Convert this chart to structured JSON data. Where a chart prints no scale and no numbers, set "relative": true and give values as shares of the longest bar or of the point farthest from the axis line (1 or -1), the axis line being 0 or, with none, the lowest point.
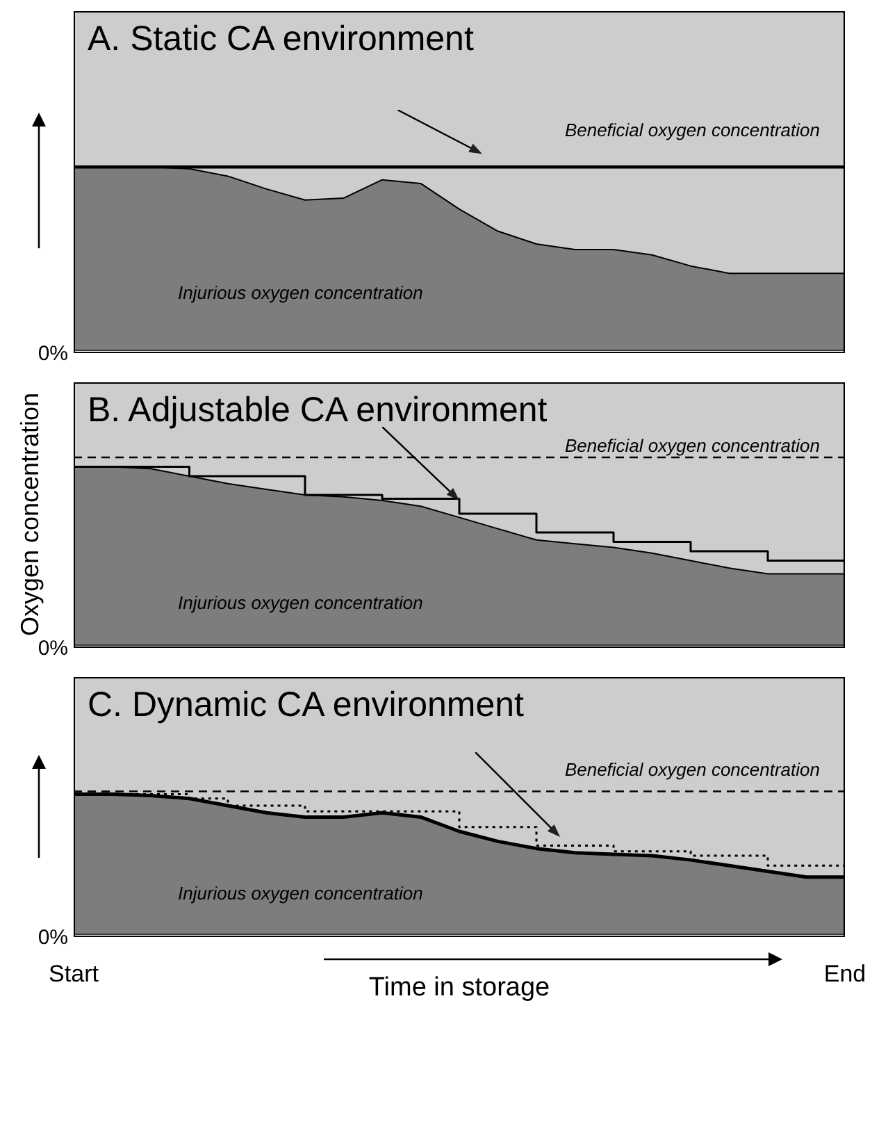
{
  "chart_data": [
    {
      "type": "area",
      "title": "A.  Static CA environment",
      "relative": true,
      "tick_labels": false,
      "categories": [
        null,
        null,
        null,
        null,
        null,
        null,
        null,
        null,
        null,
        null,
        null,
        null,
        null,
        null,
        null,
        null,
        null,
        null,
        null,
        null,
        null
      ],
      "annotations": [
        "Beneficial oxygen concentration",
        "Injurious oxygen concentration",
        "0%"
      ],
      "series": [
        {
          "color": "#7d7d7d",
          "values": [
            1,
            1,
            1,
            0.99,
            0.95,
            0.88,
            0.82,
            0.83,
            0.93,
            0.91,
            0.77,
            0.65,
            0.58,
            0.55,
            0.55,
            0.52,
            0.46,
            0.42,
            0.42,
            0.42,
            0.42
          ]
        },
        {
          "type": "line",
          "color": "#000000",
          "values": [
            1,
            1,
            1,
            1,
            1,
            1,
            1,
            1,
            1,
            1,
            1,
            1,
            1,
            1,
            1,
            1,
            1,
            1,
            1,
            1,
            1
          ]
        }
      ]
    },
    {
      "type": "area",
      "title": "B.  Adjustable CA environment",
      "ylabel": "Oxygen concentration",
      "relative": true,
      "tick_labels": false,
      "categories": [
        null,
        null,
        null,
        null,
        null,
        null,
        null,
        null,
        null,
        null,
        null,
        null,
        null,
        null,
        null,
        null,
        null,
        null,
        null,
        null,
        null
      ],
      "annotations": [
        "Beneficial oxygen concentration",
        "Injurious oxygen concentration",
        "0%"
      ],
      "series": [
        {
          "color": "#7d7d7d",
          "values": [
            0.95,
            0.95,
            0.94,
            0.9,
            0.86,
            0.83,
            0.8,
            0.79,
            0.77,
            0.74,
            0.68,
            0.62,
            0.56,
            0.54,
            0.52,
            0.49,
            0.45,
            0.41,
            0.38,
            0.38,
            0.38
          ]
        },
        {
          "type": "line",
          "color": "#000000",
          "line_style": "dashed",
          "values": [
            1,
            1,
            1,
            1,
            1,
            1,
            1,
            1,
            1,
            1,
            1,
            1,
            1,
            1,
            1,
            1,
            1,
            1,
            1,
            1,
            1
          ]
        },
        {
          "type": "step",
          "color": "#000000",
          "values": [
            0.95,
            0.95,
            0.95,
            0.9,
            0.9,
            0.9,
            0.8,
            0.8,
            0.78,
            0.78,
            0.7,
            0.7,
            0.6,
            0.6,
            0.55,
            0.55,
            0.5,
            0.5,
            0.45,
            0.45,
            0.45
          ]
        }
      ]
    },
    {
      "type": "area",
      "title": "C.  Dynamic CA environment",
      "xlabel": "Time in storage",
      "relative": true,
      "tick_labels": "x",
      "categories": [
        "Start",
        null,
        null,
        null,
        null,
        null,
        null,
        null,
        null,
        null,
        null,
        null,
        null,
        null,
        null,
        null,
        null,
        null,
        null,
        null,
        "End"
      ],
      "annotations": [
        "Beneficial oxygen concentration",
        "Injurious oxygen concentration",
        "0%"
      ],
      "series": [
        {
          "color": "#7d7d7d",
          "values": [
            0.98,
            0.98,
            0.97,
            0.95,
            0.9,
            0.85,
            0.82,
            0.82,
            0.85,
            0.82,
            0.72,
            0.65,
            0.6,
            0.57,
            0.56,
            0.55,
            0.52,
            0.48,
            0.44,
            0.4,
            0.4
          ]
        },
        {
          "type": "line",
          "color": "#000000",
          "line_style": "dashed",
          "values": [
            1,
            1,
            1,
            1,
            1,
            1,
            1,
            1,
            1,
            1,
            1,
            1,
            1,
            1,
            1,
            1,
            1,
            1,
            1,
            1,
            1
          ]
        },
        {
          "type": "step",
          "color": "#000000",
          "line_style": "dotted",
          "values": [
            0.98,
            0.98,
            0.98,
            0.95,
            0.9,
            0.9,
            0.86,
            0.86,
            0.86,
            0.86,
            0.75,
            0.75,
            0.62,
            0.62,
            0.58,
            0.58,
            0.55,
            0.55,
            0.48,
            0.48,
            0.48
          ]
        }
      ]
    }
  ]
}
